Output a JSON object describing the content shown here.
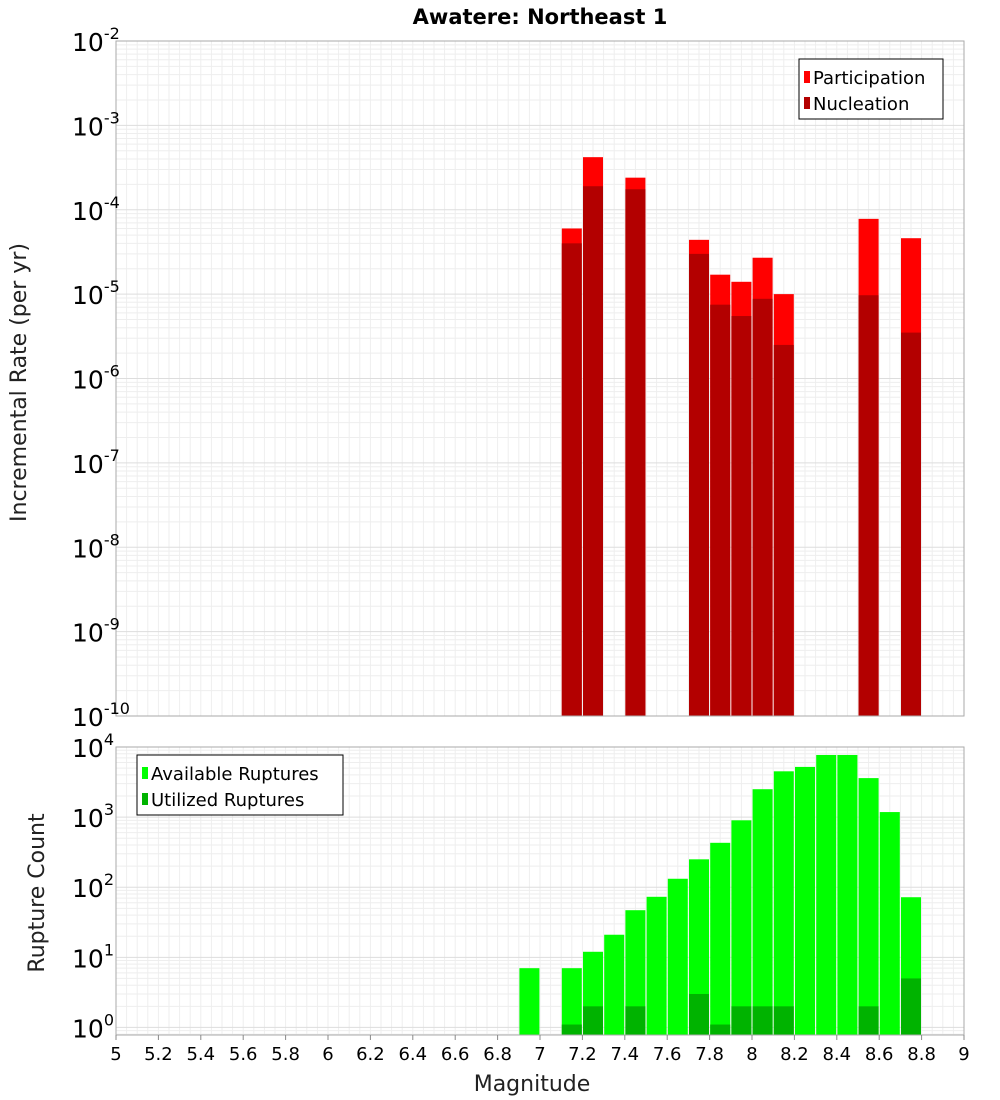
{
  "chart_data": [
    {
      "type": "bar",
      "title": "Awatere: Northeast 1",
      "ylabel": "Incremental Rate (per yr)",
      "y_scale": "log",
      "ylim": [
        1e-10,
        0.01
      ],
      "xlim": [
        5,
        9
      ],
      "ytick_labels": [
        {
          "value": 1e-10,
          "base": "10",
          "exp": "-10"
        },
        {
          "value": 1e-09,
          "base": "10",
          "exp": "-9"
        },
        {
          "value": 1e-08,
          "base": "10",
          "exp": "-8"
        },
        {
          "value": 1e-07,
          "base": "10",
          "exp": "-7"
        },
        {
          "value": 1e-06,
          "base": "10",
          "exp": "-6"
        },
        {
          "value": 1e-05,
          "base": "10",
          "exp": "-5"
        },
        {
          "value": 0.0001,
          "base": "10",
          "exp": "-4"
        },
        {
          "value": 0.001,
          "base": "10",
          "exp": "-3"
        },
        {
          "value": 0.01,
          "base": "10",
          "exp": "-2"
        }
      ],
      "legend": {
        "placement": "top-right",
        "entries": [
          {
            "label": "Participation",
            "color": "#ff0000"
          },
          {
            "label": "Nucleation",
            "color": "#b30000"
          }
        ]
      },
      "x": [
        7.15,
        7.25,
        7.45,
        7.75,
        7.85,
        7.95,
        8.05,
        8.15,
        8.55,
        8.75
      ],
      "series": [
        {
          "name": "Participation",
          "color": "#ff0000",
          "values": [
            6e-05,
            0.00042,
            0.00024,
            4.4e-05,
            1.7e-05,
            1.4e-05,
            2.7e-05,
            1e-05,
            7.8e-05,
            4.6e-05
          ]
        },
        {
          "name": "Nucleation",
          "color": "#b30000",
          "values": [
            4e-05,
            0.00019,
            0.000175,
            3e-05,
            7.5e-06,
            5.5e-06,
            8.8e-06,
            2.5e-06,
            9.7e-06,
            3.5e-06
          ]
        }
      ]
    },
    {
      "type": "bar",
      "xlabel": "Magnitude",
      "ylabel": "Rupture Count",
      "y_scale": "log",
      "ylim": [
        0.78,
        10000
      ],
      "xlim": [
        5,
        9
      ],
      "xtick_labels": [
        "5",
        "5.2",
        "5.4",
        "5.6",
        "5.8",
        "6",
        "6.2",
        "6.4",
        "6.6",
        "6.8",
        "7",
        "7.2",
        "7.4",
        "7.6",
        "7.8",
        "8",
        "8.2",
        "8.4",
        "8.6",
        "8.8",
        "9"
      ],
      "xtick_values": [
        5,
        5.2,
        5.4,
        5.6,
        5.8,
        6,
        6.2,
        6.4,
        6.6,
        6.8,
        7,
        7.2,
        7.4,
        7.6,
        7.8,
        8,
        8.2,
        8.4,
        8.6,
        8.8,
        9
      ],
      "ytick_labels": [
        {
          "value": 1,
          "base": "10",
          "exp": "0"
        },
        {
          "value": 10,
          "base": "10",
          "exp": "1"
        },
        {
          "value": 100,
          "base": "10",
          "exp": "2"
        },
        {
          "value": 1000,
          "base": "10",
          "exp": "3"
        },
        {
          "value": 10000,
          "base": "10",
          "exp": "4"
        }
      ],
      "legend": {
        "placement": "top-left",
        "entries": [
          {
            "label": "Available Ruptures",
            "color": "#00ff00"
          },
          {
            "label": "Utilized Ruptures",
            "color": "#00b300"
          }
        ]
      },
      "x": [
        6.95,
        7.15,
        7.25,
        7.35,
        7.45,
        7.55,
        7.65,
        7.75,
        7.85,
        7.95,
        8.05,
        8.15,
        8.25,
        8.35,
        8.45,
        8.55,
        8.65,
        8.75
      ],
      "series": [
        {
          "name": "Available Ruptures",
          "color": "#00ff00",
          "values": [
            7,
            7,
            12,
            21,
            47,
            73,
            132,
            250,
            430,
            900,
            2500,
            4500,
            5200,
            7700,
            7700,
            3600,
            1180,
            72
          ]
        },
        {
          "name": "Utilized Ruptures",
          "color": "#00b300",
          "values": [
            null,
            1.1,
            2,
            null,
            2,
            null,
            null,
            3,
            1.1,
            2,
            2,
            2,
            null,
            null,
            null,
            2,
            null,
            5
          ]
        }
      ]
    }
  ]
}
